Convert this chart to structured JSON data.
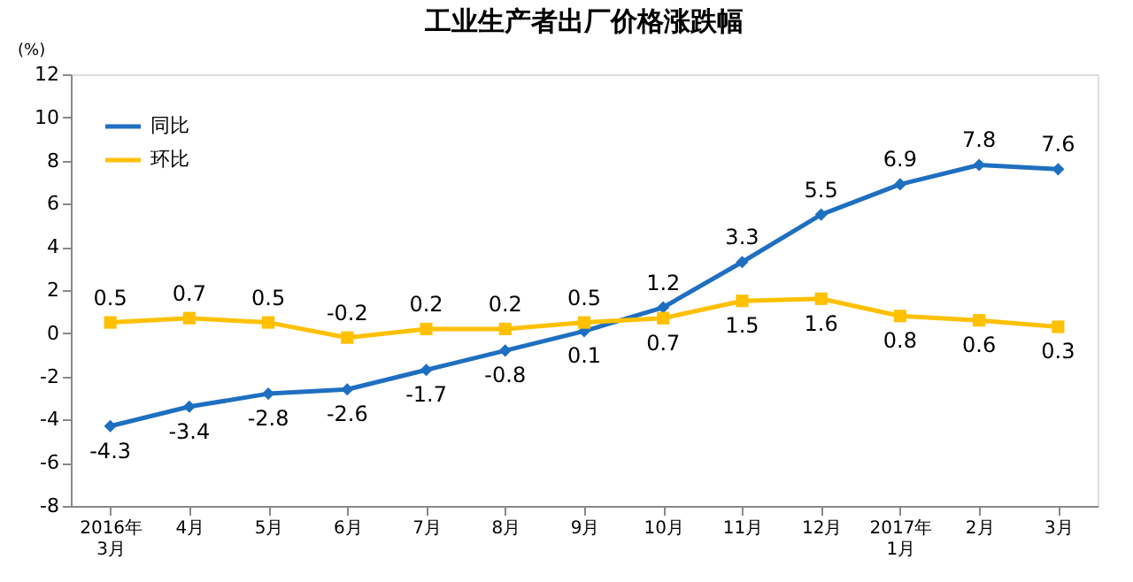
{
  "chart_data": {
    "type": "line",
    "title": "工业生产者出厂价格涨跌幅",
    "ylabel": "(%)",
    "categories": [
      "2016年\n3月",
      "4月",
      "5月",
      "6月",
      "7月",
      "8月",
      "9月",
      "10月",
      "11月",
      "12月",
      "2017年\n1月",
      "2月",
      "3月"
    ],
    "series": [
      {
        "name": "同比",
        "color": "#1f6fc0",
        "marker": "diamond",
        "values": [
          -4.3,
          -3.4,
          -2.8,
          -2.6,
          -1.7,
          -0.8,
          0.1,
          1.2,
          3.3,
          5.5,
          6.9,
          7.8,
          7.6
        ]
      },
      {
        "name": "环比",
        "color": "#ffc000",
        "marker": "square",
        "values": [
          0.5,
          0.7,
          0.5,
          -0.2,
          0.2,
          0.2,
          0.5,
          0.7,
          1.5,
          1.6,
          0.8,
          0.6,
          0.3
        ]
      }
    ],
    "ylim": [
      -8,
      12
    ],
    "yticks": [
      -8,
      -6,
      -4,
      -2,
      0,
      2,
      4,
      6,
      8,
      10,
      12
    ],
    "data_labels": true,
    "legend": "top left",
    "grid": false,
    "line_style": "solid"
  }
}
